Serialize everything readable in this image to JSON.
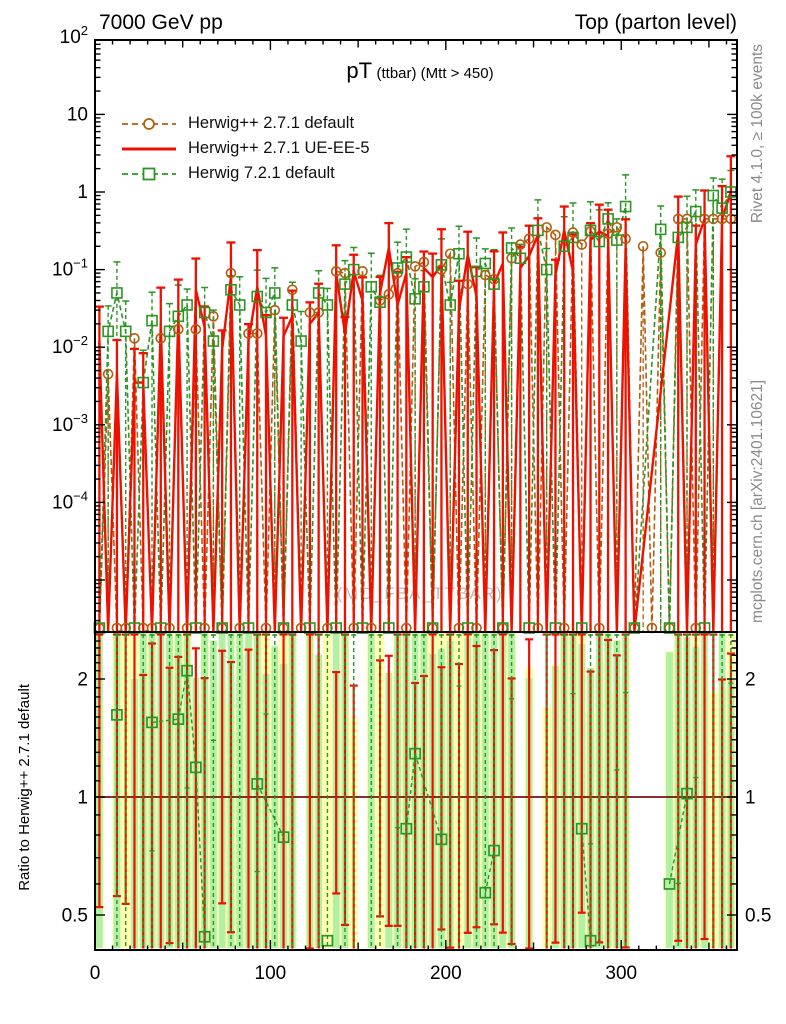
{
  "header": {
    "left": "7000 GeV pp",
    "right": "Top (parton level)"
  },
  "title": {
    "main": "pT",
    "sub": "(ttbar) (Mtt > 450)"
  },
  "watermark": "(MC_FBA_TTBAR)",
  "side_notes": {
    "top": "Rivet 4.1.0, ≥ 100k events",
    "bottom": "mcplots.cern.ch [arXiv:2401.10621]"
  },
  "legend": [
    {
      "label": "Herwig++ 2.7.1 default",
      "style": "dashed-circle",
      "color": "#b35d0e"
    },
    {
      "label": "Herwig++ 2.7.1 UE-EE-5",
      "style": "solid",
      "color": "#ee1100"
    },
    {
      "label": "Herwig 7.2.1 default",
      "style": "dashed-square",
      "color": "#2a9622"
    }
  ],
  "axes": {
    "x": {
      "min": 0,
      "max": 366,
      "labeled_ticks": [
        0,
        100,
        200,
        300
      ]
    },
    "y_main": {
      "scale": "log",
      "tick_labels": [
        {
          "base": "10",
          "exp": "2",
          "v": 100
        },
        {
          "base": "10",
          "exp": "",
          "v": 10
        },
        {
          "base": "1",
          "exp": "",
          "v": 1
        },
        {
          "base": "10",
          "exp": "−1",
          "v": 0.1
        },
        {
          "base": "10",
          "exp": "−2",
          "v": 0.01
        },
        {
          "base": "10",
          "exp": "−3",
          "v": 0.001
        },
        {
          "base": "10",
          "exp": "−4",
          "v": 0.0001
        }
      ]
    },
    "y_ratio": {
      "scale": "log",
      "label": "Ratio to Herwig++ 2.7.1 default",
      "tick_labels": [
        {
          "t": "2",
          "v": 2
        },
        {
          "t": "1",
          "v": 1
        },
        {
          "t": "0.5",
          "v": 0.5
        }
      ],
      "range": [
        0.397,
        2.58
      ]
    }
  },
  "chart_data": {
    "type": "line",
    "title": "pT (ttbar) (Mtt > 450)",
    "xlabel_ticks": [
      0,
      100,
      200,
      300
    ],
    "xlim": [
      0,
      366
    ],
    "ylim_main": [
      2.6e-06,
      112
    ],
    "ylim_ratio": [
      0.397,
      2.58
    ],
    "bin_width": 5,
    "first_bin_center": 2.5,
    "ratio_reference": "Herwig++ 2.7.1 default",
    "colors": {
      "red": "#ee1100",
      "green": "#2a9622",
      "orange": "#b35d0e",
      "band_yellow": "#feffb0",
      "band_green": "#b2f0a4",
      "ratio_unit_line": "#7a1010",
      "frame": "#000000"
    },
    "series": [
      {
        "name": "Herwig++ 2.7.1 default",
        "style": "dashed-circle",
        "color": "#b35d0e",
        "values": [
          0,
          0.0045,
          0,
          0,
          0.013,
          0,
          0,
          0.013,
          0,
          0.017,
          0,
          0.017,
          0,
          0.025,
          0,
          0.09,
          0,
          0.015,
          0.015,
          0,
          0.03,
          0,
          0.055,
          0,
          0.028,
          0.028,
          0,
          0.095,
          0.09,
          0,
          0.095,
          0,
          0.04,
          0.048,
          0.09,
          0,
          0.11,
          0.125,
          0,
          0.1,
          0.16,
          0,
          0.065,
          0,
          0.085,
          0.075,
          0,
          0.14,
          0.21,
          0.25,
          0,
          0.35,
          0.28,
          0,
          0.3,
          0.21,
          0.31,
          0,
          0.29,
          0.35,
          0.25,
          0,
          0.2,
          0,
          0.165,
          0,
          0.45,
          0.45,
          0,
          0.45,
          0.45,
          0.45,
          0.45
        ]
      },
      {
        "name": "Herwig++ 2.7.1 UE-EE-5",
        "style": "solid",
        "color": "#ee1100",
        "values": [
          0.012,
          0,
          0.0045,
          0,
          0.0035,
          0.0035,
          0,
          0.02,
          0,
          0.025,
          0,
          0.055,
          0.018,
          0,
          0.0095,
          0.08,
          0,
          0.012,
          0.06,
          0.014,
          0,
          0.014,
          0.025,
          0,
          0.02,
          0.028,
          0,
          0.09,
          0.015,
          0.095,
          0.04,
          0,
          0.05,
          0.19,
          0.035,
          0.09,
          0,
          0.105,
          0.08,
          0.115,
          0,
          0.03,
          0.155,
          0.045,
          0,
          0.065,
          0.12,
          0,
          0.105,
          0.15,
          0.28,
          0,
          0.085,
          0.32,
          0.095,
          0,
          0.24,
          0.31,
          0.27,
          0,
          0.19,
          0,
          null,
          null,
          null,
          null,
          0.3,
          0,
          0.21,
          0.45,
          0,
          0.45,
          1.0
        ]
      },
      {
        "name": "Herwig 7.2.1 default",
        "style": "dashed-square",
        "color": "#2a9622",
        "values": [
          0,
          0.016,
          0.05,
          0.016,
          0,
          0.0035,
          0.022,
          0,
          0.016,
          0.025,
          0.035,
          0,
          0.028,
          0.012,
          0,
          0.055,
          0.035,
          0,
          0.045,
          0.028,
          0.05,
          0,
          0.035,
          0.012,
          0,
          0.05,
          0.035,
          0,
          0.065,
          0.1,
          0,
          0.06,
          0.038,
          0,
          0.105,
          0.145,
          0.042,
          0.06,
          0,
          0.115,
          0.035,
          0.16,
          0,
          0.095,
          0.12,
          0.065,
          0,
          0.19,
          0.14,
          0,
          0.32,
          0.1,
          0,
          0.2,
          0.26,
          0,
          0.32,
          0.23,
          0.45,
          0.24,
          0.65,
          0,
          null,
          null,
          0.33,
          0,
          0.26,
          0.35,
          0.56,
          0,
          0.9,
          0.62,
          1.0
        ]
      }
    ],
    "ratio_green_squares": [
      [
        12.5,
        1.62
      ],
      [
        32.5,
        1.55
      ],
      [
        47.5,
        1.58
      ],
      [
        52.5,
        2.1
      ],
      [
        57.5,
        1.19
      ],
      [
        62.5,
        0.44
      ],
      [
        92.5,
        1.08
      ],
      [
        107.5,
        0.79
      ],
      [
        132.5,
        0.43
      ],
      [
        177.5,
        0.83
      ],
      [
        182.5,
        1.29
      ],
      [
        197.5,
        0.78
      ],
      [
        222.5,
        0.57
      ],
      [
        227.5,
        0.73
      ],
      [
        277.5,
        0.83
      ],
      [
        282.5,
        0.43
      ],
      [
        327.5,
        0.6
      ],
      [
        337.5,
        1.02
      ]
    ],
    "ratio_bins_without_bands": [
      1,
      23,
      30,
      48,
      50,
      61,
      62,
      63,
      64
    ]
  }
}
